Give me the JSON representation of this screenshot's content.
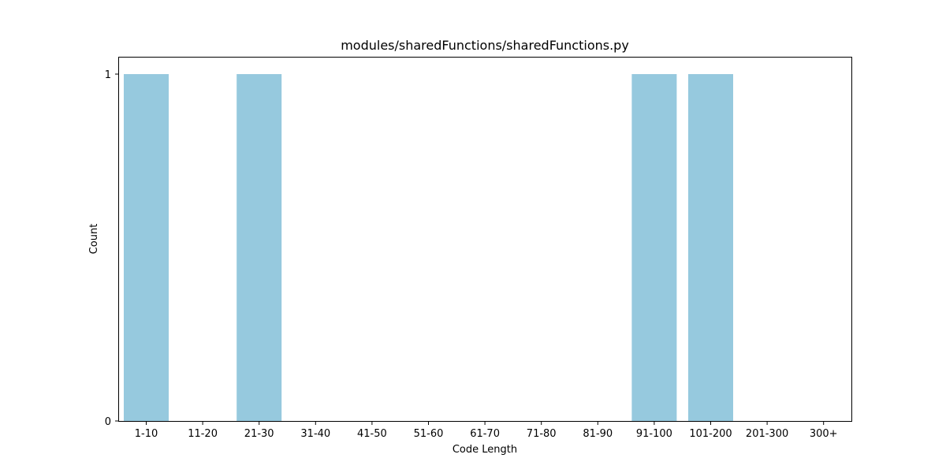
{
  "chart_data": {
    "type": "bar",
    "title": "modules/sharedFunctions/sharedFunctions.py",
    "xlabel": "Code Length",
    "ylabel": "Count",
    "categories": [
      "1-10",
      "11-20",
      "21-30",
      "31-40",
      "41-50",
      "51-60",
      "61-70",
      "71-80",
      "81-90",
      "91-100",
      "101-200",
      "201-300",
      "300+"
    ],
    "values": [
      1,
      0,
      1,
      0,
      0,
      0,
      0,
      0,
      0,
      1,
      1,
      0,
      0
    ],
    "ylim": [
      0,
      1.05
    ],
    "yticks": [
      0,
      1
    ],
    "grid": false,
    "legend": "none",
    "bar_color": "#96c9de"
  }
}
